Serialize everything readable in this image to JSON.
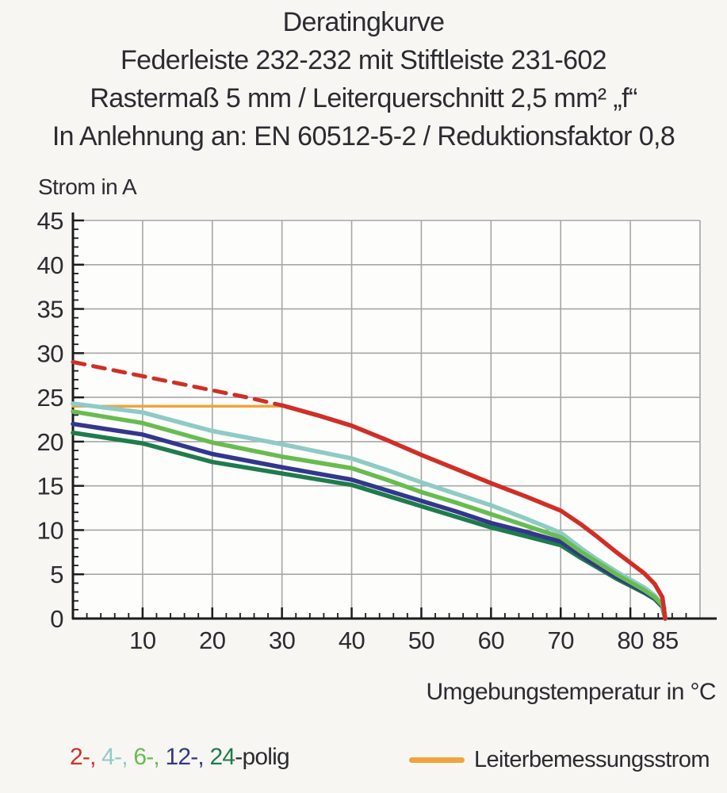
{
  "title": {
    "line1": "Deratingkurve",
    "line2": "Federleiste 232-232 mit Stiftleiste 231-602",
    "line3": "Rastermaß 5 mm / Leiterquerschnitt 2,5 mm² „f“",
    "line4": "In Anlehnung an: EN 60512-5-2 / Reduktionsfaktor 0,8"
  },
  "legend": {
    "poles": {
      "items": [
        {
          "label": "2-,",
          "color": "#cf2f27"
        },
        {
          "label": "4-,",
          "color": "#8ecbc5"
        },
        {
          "label": "6-,",
          "color": "#68bc4f"
        },
        {
          "label": "12-,",
          "color": "#33378b"
        },
        {
          "label": "24",
          "color": "#1e7c4b"
        }
      ],
      "suffix": "-polig"
    },
    "rated_current": {
      "label": "Leiterbemessungsstrom",
      "color": "#f1a33c"
    }
  },
  "chart_data": {
    "type": "line",
    "title": "Deratingkurve",
    "xlabel": "Umgebungstemperatur in °C",
    "ylabel": "Strom in A",
    "xlim": [
      0,
      90
    ],
    "ylim": [
      0,
      45
    ],
    "xticks": [
      10,
      20,
      30,
      40,
      50,
      60,
      70,
      80,
      85
    ],
    "yticks": [
      0,
      5,
      10,
      15,
      20,
      25,
      30,
      35,
      40,
      45
    ],
    "grid_x": [
      10,
      20,
      30,
      40,
      50,
      60,
      70,
      80,
      90
    ],
    "grid_y": [
      5,
      10,
      15,
      20,
      25,
      30,
      35,
      40,
      45
    ],
    "minor_tick_step_x": 2,
    "minor_tick_step_y": 1,
    "grid": true,
    "legend_position": "bottom",
    "colors": {
      "grid": "#a6a6a6",
      "axis": "#1c1c1c",
      "plot_bg": "#fdfdfc",
      "text": "#2b2b31"
    },
    "series": [
      {
        "name": "Leiterbemessungsstrom",
        "color": "#f1a33c",
        "width": 3.5,
        "points": [
          [
            0,
            24
          ],
          [
            30,
            24
          ]
        ]
      },
      {
        "name": "24-polig",
        "color": "#1e7c4b",
        "width": 5.5,
        "points": [
          [
            0,
            21
          ],
          [
            10,
            19.8
          ],
          [
            20,
            17.7
          ],
          [
            30,
            16.4
          ],
          [
            40,
            15.1
          ],
          [
            45,
            13.9
          ],
          [
            50,
            12.7
          ],
          [
            55,
            11.5
          ],
          [
            60,
            10.3
          ],
          [
            65,
            9.3
          ],
          [
            70,
            8.3
          ],
          [
            73,
            6.8
          ],
          [
            75,
            5.9
          ],
          [
            78,
            4.5
          ],
          [
            80,
            3.7
          ],
          [
            82,
            2.9
          ],
          [
            83.5,
            2.2
          ],
          [
            84.6,
            1.3
          ],
          [
            85,
            0
          ]
        ]
      },
      {
        "name": "12-polig",
        "color": "#33378b",
        "width": 5.5,
        "points": [
          [
            0,
            22
          ],
          [
            10,
            20.8
          ],
          [
            20,
            18.6
          ],
          [
            30,
            17.1
          ],
          [
            40,
            15.7
          ],
          [
            45,
            14.5
          ],
          [
            50,
            13.3
          ],
          [
            55,
            12.1
          ],
          [
            60,
            10.8
          ],
          [
            65,
            9.8
          ],
          [
            70,
            8.7
          ],
          [
            73,
            7.1
          ],
          [
            75,
            6.1
          ],
          [
            78,
            4.7
          ],
          [
            80,
            3.9
          ],
          [
            82,
            3.0
          ],
          [
            83.5,
            2.3
          ],
          [
            84.6,
            1.4
          ],
          [
            85,
            0
          ]
        ]
      },
      {
        "name": "4-polig",
        "color": "#8ecbc5",
        "width": 5.5,
        "points": [
          [
            0,
            24.3
          ],
          [
            10,
            23.3
          ],
          [
            20,
            21.2
          ],
          [
            30,
            19.7
          ],
          [
            35,
            18.9
          ],
          [
            40,
            18.1
          ],
          [
            45,
            16.8
          ],
          [
            50,
            15.4
          ],
          [
            55,
            14.1
          ],
          [
            60,
            12.8
          ],
          [
            65,
            11.3
          ],
          [
            70,
            9.7
          ],
          [
            73,
            7.9
          ],
          [
            75,
            6.8
          ],
          [
            78,
            5.3
          ],
          [
            80,
            4.4
          ],
          [
            82,
            3.5
          ],
          [
            83.5,
            2.6
          ],
          [
            84.6,
            1.6
          ],
          [
            85,
            0
          ]
        ]
      },
      {
        "name": "6-polig",
        "color": "#68bc4f",
        "width": 5.5,
        "points": [
          [
            0,
            23.4
          ],
          [
            10,
            22.1
          ],
          [
            20,
            19.9
          ],
          [
            30,
            18.3
          ],
          [
            40,
            17.0
          ],
          [
            45,
            15.7
          ],
          [
            50,
            14.3
          ],
          [
            55,
            13.1
          ],
          [
            60,
            11.8
          ],
          [
            65,
            10.5
          ],
          [
            70,
            9.2
          ],
          [
            73,
            7.5
          ],
          [
            75,
            6.5
          ],
          [
            78,
            5.0
          ],
          [
            80,
            4.1
          ],
          [
            82,
            3.2
          ],
          [
            83.5,
            2.4
          ],
          [
            84.6,
            1.5
          ],
          [
            85,
            0
          ]
        ]
      },
      {
        "name": "2-polig",
        "segment": "solid",
        "color": "#cf2f27",
        "width": 5.5,
        "points": [
          [
            30,
            24.1
          ],
          [
            35,
            23.0
          ],
          [
            40,
            21.8
          ],
          [
            45,
            20.2
          ],
          [
            50,
            18.5
          ],
          [
            55,
            16.9
          ],
          [
            60,
            15.3
          ],
          [
            65,
            13.8
          ],
          [
            70,
            12.2
          ],
          [
            73,
            10.6
          ],
          [
            75,
            9.4
          ],
          [
            78,
            7.5
          ],
          [
            80,
            6.3
          ],
          [
            82,
            5.1
          ],
          [
            83.5,
            3.9
          ],
          [
            84.6,
            2.4
          ],
          [
            85,
            0
          ]
        ]
      },
      {
        "name": "2-polig",
        "segment": "dashed",
        "color": "#cf2f27",
        "width": 5,
        "dash": "15 11",
        "points": [
          [
            0,
            29
          ],
          [
            5,
            28.2
          ],
          [
            10,
            27.4
          ],
          [
            15,
            26.6
          ],
          [
            20,
            25.8
          ],
          [
            25,
            25.0
          ],
          [
            30,
            24.1
          ]
        ]
      }
    ]
  }
}
